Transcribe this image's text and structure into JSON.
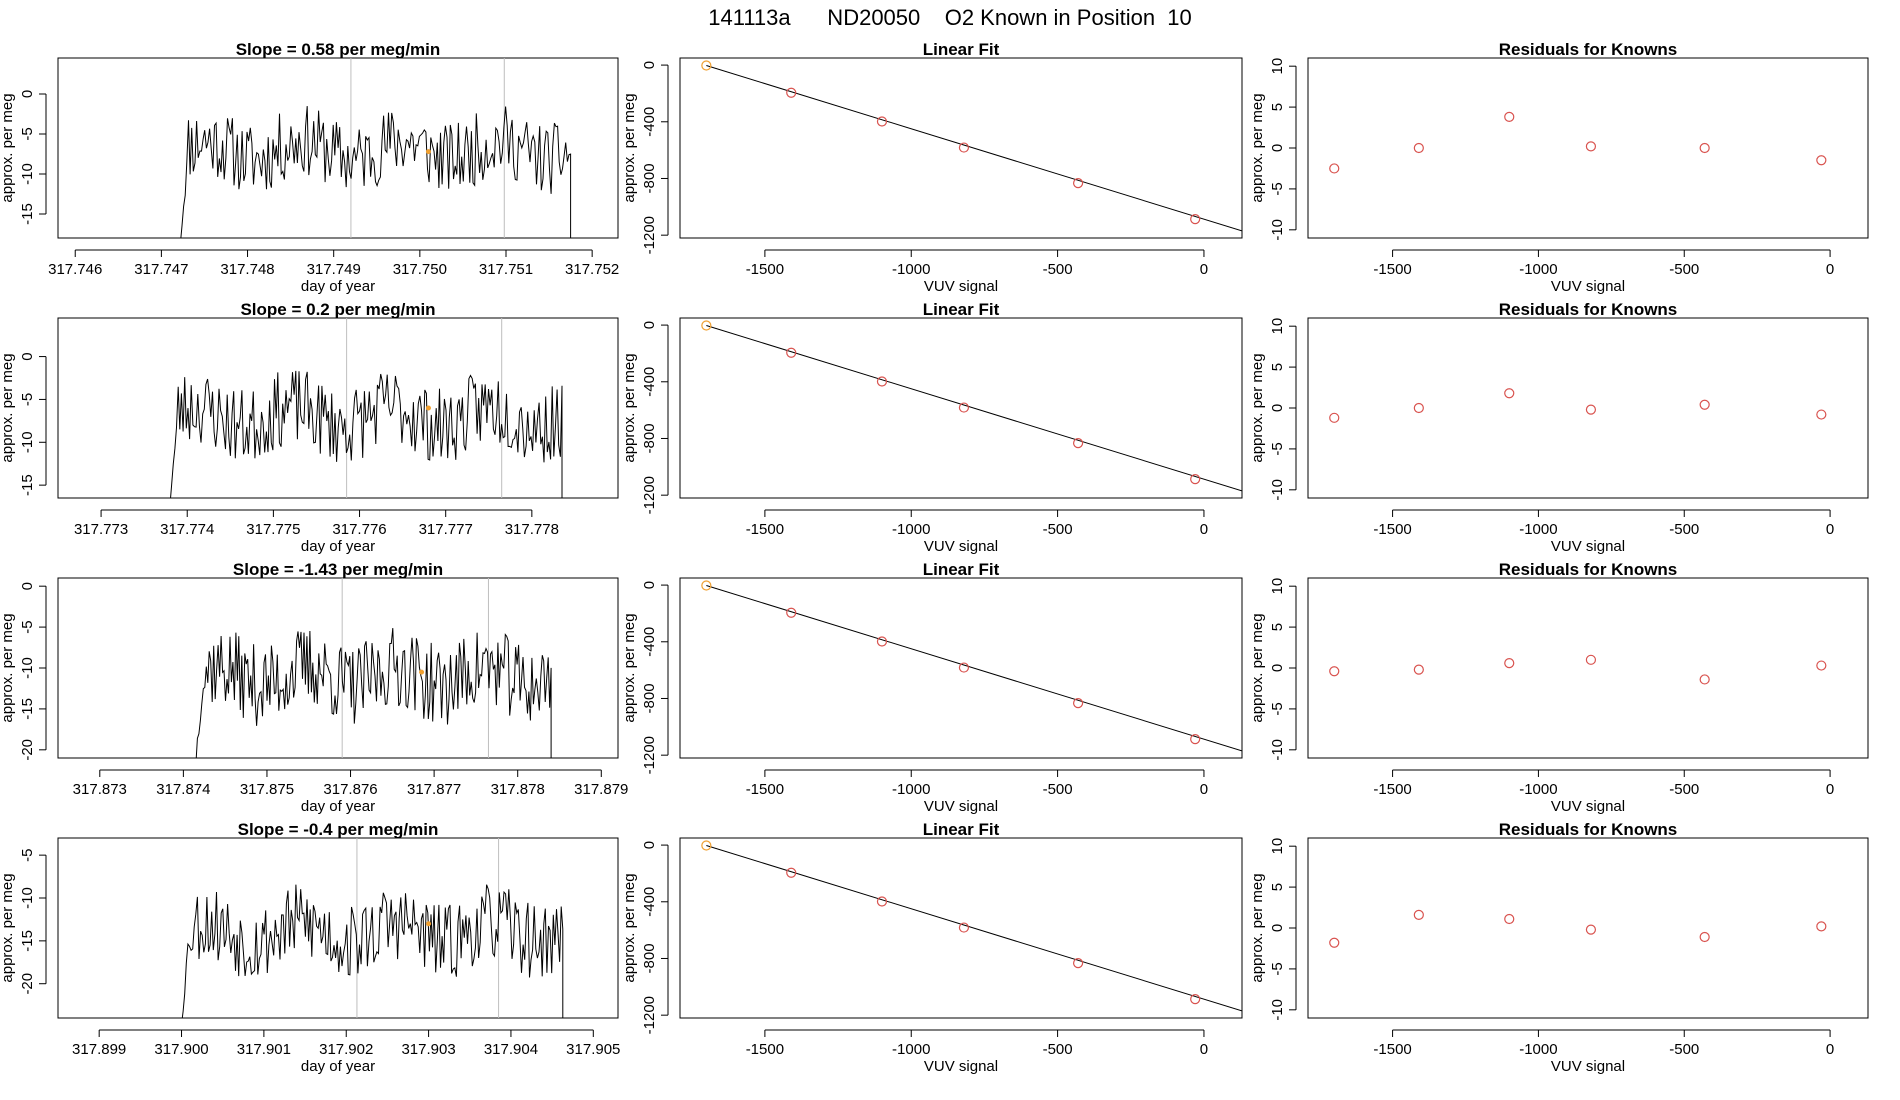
{
  "page_title": "141113a      ND20050    O2 Known in Position  10",
  "colors": {
    "trace": "#000000",
    "vline": "#bebebe",
    "point": "#d9534f",
    "highlight": "#f0a030"
  },
  "chart_data": [
    {
      "type": "line",
      "title": "Slope =  0.58  per meg/min",
      "xlabel": "day of year",
      "ylabel": "approx. per meg",
      "xlim": [
        317.7458,
        317.7523
      ],
      "ylim": [
        -18,
        4.5
      ],
      "xticks": [
        "317.746",
        "317.747",
        "317.748",
        "317.749",
        "317.750",
        "317.751",
        "317.752"
      ],
      "xtick_values": [
        317.746,
        317.747,
        317.748,
        317.749,
        317.75,
        317.751,
        317.752
      ],
      "yticks": [
        "-15",
        "-10",
        "-5",
        "0"
      ],
      "ytick_values": [
        -15,
        -10,
        -5,
        0
      ],
      "trace_start": 317.74722,
      "trace_end": 317.75175,
      "trace_level": -7,
      "trace_amp": 4.5,
      "trace_floor": -18,
      "seed": 11,
      "vlines": [
        317.7492,
        317.75098
      ],
      "highlight": [
        317.7501,
        -7.2
      ]
    },
    {
      "type": "line",
      "title": "Linear Fit",
      "xlabel": "VUV signal",
      "ylabel": "approx. per meg",
      "xlim": [
        -1790,
        130
      ],
      "ylim": [
        -1220,
        50
      ],
      "xticks": [
        "-1500",
        "-1000",
        "-500",
        "0"
      ],
      "xtick_values": [
        -1500,
        -1000,
        -500,
        0
      ],
      "yticks": [
        "-1200",
        "-800",
        "-400",
        "0"
      ],
      "ytick_values": [
        -1200,
        -800,
        -400,
        0
      ],
      "fit_line": [
        [
          -1700,
          -3
        ],
        [
          130,
          -1170
        ]
      ],
      "points": [
        [
          -1700,
          -3
        ],
        [
          -1410,
          -195
        ],
        [
          -1100,
          -398
        ],
        [
          -820,
          -582
        ],
        [
          -430,
          -833
        ],
        [
          -30,
          -1087
        ]
      ]
    },
    {
      "type": "scatter",
      "title": "Residuals for Knowns",
      "xlabel": "VUV signal",
      "ylabel": "approx. per meg",
      "xlim": [
        -1790,
        130
      ],
      "ylim": [
        -11,
        11
      ],
      "xticks": [
        "-1500",
        "-1000",
        "-500",
        "0"
      ],
      "xtick_values": [
        -1500,
        -1000,
        -500,
        0
      ],
      "yticks": [
        "-10",
        "-5",
        "0",
        "5",
        "10"
      ],
      "ytick_values": [
        -10,
        -5,
        0,
        5,
        10
      ],
      "points": [
        [
          -1700,
          -2.5
        ],
        [
          -1410,
          0
        ],
        [
          -1100,
          3.8
        ],
        [
          -820,
          0.2
        ],
        [
          -430,
          0
        ],
        [
          -30,
          -1.5
        ]
      ]
    },
    {
      "type": "line",
      "title": "Slope =  0.2  per meg/min",
      "xlabel": "day of year",
      "ylabel": "approx. per meg",
      "xlim": [
        317.7725,
        317.779
      ],
      "ylim": [
        -16.5,
        4.5
      ],
      "xticks": [
        "317.773",
        "317.774",
        "317.775",
        "317.776",
        "317.777",
        "317.778"
      ],
      "xtick_values": [
        317.773,
        317.774,
        317.775,
        317.776,
        317.777,
        317.778
      ],
      "yticks": [
        "-15",
        "-10",
        "-5",
        "0"
      ],
      "ytick_values": [
        -15,
        -10,
        -5,
        0
      ],
      "trace_start": 317.7738,
      "trace_end": 317.77835,
      "trace_level": -7,
      "trace_amp": 4.5,
      "trace_floor": -16.5,
      "seed": 23,
      "vlines": [
        317.77585,
        317.77765
      ],
      "highlight": [
        317.7768,
        -6.0
      ]
    },
    {
      "type": "line",
      "title": "Linear Fit",
      "xlabel": "VUV signal",
      "ylabel": "approx. per meg",
      "xlim": [
        -1790,
        130
      ],
      "ylim": [
        -1220,
        50
      ],
      "xticks": [
        "-1500",
        "-1000",
        "-500",
        "0"
      ],
      "xtick_values": [
        -1500,
        -1000,
        -500,
        0
      ],
      "yticks": [
        "-1200",
        "-800",
        "-400",
        "0"
      ],
      "ytick_values": [
        -1200,
        -800,
        -400,
        0
      ],
      "fit_line": [
        [
          -1700,
          -3
        ],
        [
          130,
          -1170
        ]
      ],
      "points": [
        [
          -1700,
          -3
        ],
        [
          -1410,
          -195
        ],
        [
          -1100,
          -398
        ],
        [
          -820,
          -582
        ],
        [
          -430,
          -833
        ],
        [
          -30,
          -1087
        ]
      ]
    },
    {
      "type": "scatter",
      "title": "Residuals for Knowns",
      "xlabel": "VUV signal",
      "ylabel": "approx. per meg",
      "xlim": [
        -1790,
        130
      ],
      "ylim": [
        -11,
        11
      ],
      "xticks": [
        "-1500",
        "-1000",
        "-500",
        "0"
      ],
      "xtick_values": [
        -1500,
        -1000,
        -500,
        0
      ],
      "yticks": [
        "-10",
        "-5",
        "0",
        "5",
        "10"
      ],
      "ytick_values": [
        -10,
        -5,
        0,
        5,
        10
      ],
      "points": [
        [
          -1700,
          -1.2
        ],
        [
          -1410,
          0
        ],
        [
          -1100,
          1.8
        ],
        [
          -820,
          -0.2
        ],
        [
          -430,
          0.4
        ],
        [
          -30,
          -0.8
        ]
      ]
    },
    {
      "type": "line",
      "title": "Slope =  -1.43  per meg/min",
      "xlabel": "day of year",
      "ylabel": "approx. per meg",
      "xlim": [
        317.8725,
        317.8792
      ],
      "ylim": [
        -21,
        1
      ],
      "xticks": [
        "317.873",
        "317.874",
        "317.875",
        "317.876",
        "317.877",
        "317.878",
        "317.879"
      ],
      "xtick_values": [
        317.873,
        317.874,
        317.875,
        317.876,
        317.877,
        317.878,
        317.879
      ],
      "yticks": [
        "-20",
        "-15",
        "-10",
        "-5",
        "0"
      ],
      "ytick_values": [
        -20,
        -15,
        -10,
        -5,
        0
      ],
      "trace_start": 317.87415,
      "trace_end": 317.8784,
      "trace_level": -11,
      "trace_amp": 5,
      "trace_floor": -21,
      "seed": 37,
      "vlines": [
        317.8759,
        317.87765
      ],
      "highlight": [
        317.87685,
        -10.5
      ]
    },
    {
      "type": "line",
      "title": "Linear Fit",
      "xlabel": "VUV signal",
      "ylabel": "approx. per meg",
      "xlim": [
        -1790,
        130
      ],
      "ylim": [
        -1220,
        50
      ],
      "xticks": [
        "-1500",
        "-1000",
        "-500",
        "0"
      ],
      "xtick_values": [
        -1500,
        -1000,
        -500,
        0
      ],
      "yticks": [
        "-1200",
        "-800",
        "-400",
        "0"
      ],
      "ytick_values": [
        -1200,
        -800,
        -400,
        0
      ],
      "fit_line": [
        [
          -1700,
          -3
        ],
        [
          130,
          -1170
        ]
      ],
      "points": [
        [
          -1700,
          -3
        ],
        [
          -1410,
          -195
        ],
        [
          -1100,
          -398
        ],
        [
          -820,
          -582
        ],
        [
          -430,
          -833
        ],
        [
          -30,
          -1087
        ]
      ]
    },
    {
      "type": "scatter",
      "title": "Residuals for Knowns",
      "xlabel": "VUV signal",
      "ylabel": "approx. per meg",
      "xlim": [
        -1790,
        130
      ],
      "ylim": [
        -11,
        11
      ],
      "xticks": [
        "-1500",
        "-1000",
        "-500",
        "0"
      ],
      "xtick_values": [
        -1500,
        -1000,
        -500,
        0
      ],
      "yticks": [
        "-10",
        "-5",
        "0",
        "5",
        "10"
      ],
      "ytick_values": [
        -10,
        -5,
        0,
        5,
        10
      ],
      "points": [
        [
          -1700,
          -0.4
        ],
        [
          -1410,
          -0.2
        ],
        [
          -1100,
          0.6
        ],
        [
          -820,
          1.0
        ],
        [
          -430,
          -1.4
        ],
        [
          -30,
          0.3
        ]
      ]
    },
    {
      "type": "line",
      "title": "Slope =  -0.4  per meg/min",
      "xlabel": "day of year",
      "ylabel": "approx. per meg",
      "xlim": [
        317.8985,
        317.9053
      ],
      "ylim": [
        -24,
        -3
      ],
      "xticks": [
        "317.899",
        "317.900",
        "317.901",
        "317.902",
        "317.903",
        "317.904",
        "317.905"
      ],
      "xtick_values": [
        317.899,
        317.9,
        317.901,
        317.902,
        317.903,
        317.904,
        317.905
      ],
      "yticks": [
        "-20",
        "-15",
        "-10",
        "-5"
      ],
      "ytick_values": [
        -20,
        -15,
        -10,
        -5
      ],
      "trace_start": 317.9,
      "trace_end": 317.90463,
      "trace_level": -14,
      "trace_amp": 4.5,
      "trace_floor": -24,
      "seed": 53,
      "vlines": [
        317.90213,
        317.90385
      ],
      "highlight": [
        317.903,
        -13.0
      ]
    },
    {
      "type": "line",
      "title": "Linear Fit",
      "xlabel": "VUV signal",
      "ylabel": "approx. per meg",
      "xlim": [
        -1790,
        130
      ],
      "ylim": [
        -1220,
        50
      ],
      "xticks": [
        "-1500",
        "-1000",
        "-500",
        "0"
      ],
      "xtick_values": [
        -1500,
        -1000,
        -500,
        0
      ],
      "yticks": [
        "-1200",
        "-800",
        "-400",
        "0"
      ],
      "ytick_values": [
        -1200,
        -800,
        -400,
        0
      ],
      "fit_line": [
        [
          -1700,
          -3
        ],
        [
          130,
          -1170
        ]
      ],
      "points": [
        [
          -1700,
          -3
        ],
        [
          -1410,
          -195
        ],
        [
          -1100,
          -398
        ],
        [
          -820,
          -582
        ],
        [
          -430,
          -833
        ],
        [
          -30,
          -1087
        ]
      ]
    },
    {
      "type": "scatter",
      "title": "Residuals for Knowns",
      "xlabel": "VUV signal",
      "ylabel": "approx. per meg",
      "xlim": [
        -1790,
        130
      ],
      "ylim": [
        -11,
        11
      ],
      "xticks": [
        "-1500",
        "-1000",
        "-500",
        "0"
      ],
      "xtick_values": [
        -1500,
        -1000,
        -500,
        0
      ],
      "yticks": [
        "-10",
        "-5",
        "0",
        "5",
        "10"
      ],
      "ytick_values": [
        -10,
        -5,
        0,
        5,
        10
      ],
      "points": [
        [
          -1700,
          -1.8
        ],
        [
          -1410,
          1.6
        ],
        [
          -1100,
          1.1
        ],
        [
          -820,
          -0.2
        ],
        [
          -430,
          -1.1
        ],
        [
          -30,
          0.2
        ]
      ]
    }
  ]
}
